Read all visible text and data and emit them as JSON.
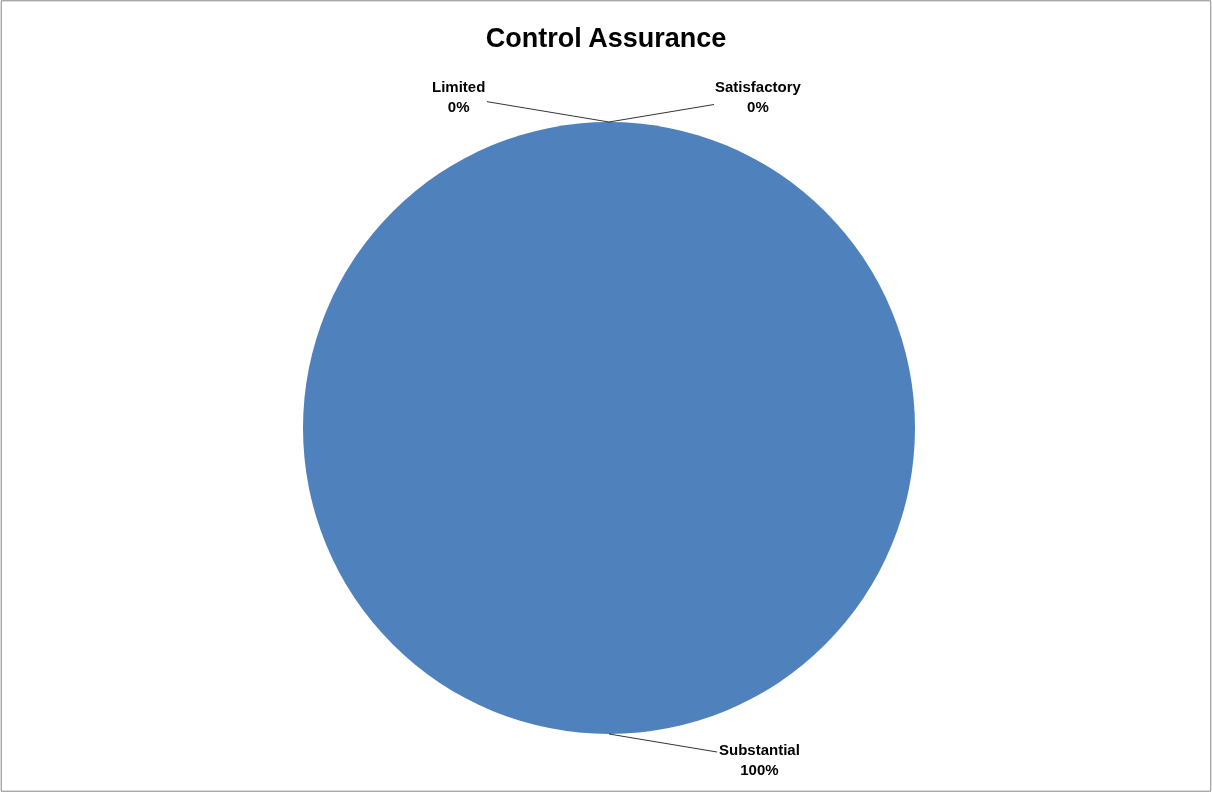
{
  "chart_data": {
    "type": "pie",
    "title": "Control Assurance",
    "categories": [
      "Substantial",
      "Satisfactory",
      "Limited"
    ],
    "values": [
      100,
      0,
      0
    ],
    "value_labels": [
      "100%",
      "0%",
      "0%"
    ],
    "colors": [
      "#4f81bd",
      "#c0504d",
      "#9bbb59"
    ],
    "legend": false
  }
}
